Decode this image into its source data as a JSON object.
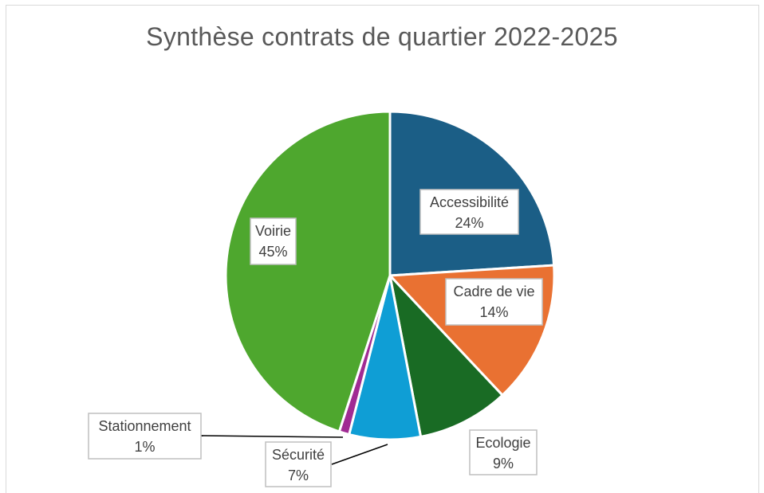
{
  "chart_data": {
    "type": "pie",
    "title": "Synthèse contrats de quartier 2022-2025",
    "slices": [
      {
        "label": "Accessibilité",
        "value": 24,
        "pct_text": "24%",
        "color": "#1b5e86"
      },
      {
        "label": "Cadre de vie",
        "value": 14,
        "pct_text": "14%",
        "color": "#e97132"
      },
      {
        "label": "Ecologie",
        "value": 9,
        "pct_text": "9%",
        "color": "#196b24"
      },
      {
        "label": "Sécurité",
        "value": 7,
        "pct_text": "7%",
        "color": "#0f9ed5"
      },
      {
        "label": "Stationnement",
        "value": 1,
        "pct_text": "1%",
        "color": "#a02b93"
      },
      {
        "label": "Voirie",
        "value": 45,
        "pct_text": "45%",
        "color": "#4ea72e"
      }
    ]
  }
}
